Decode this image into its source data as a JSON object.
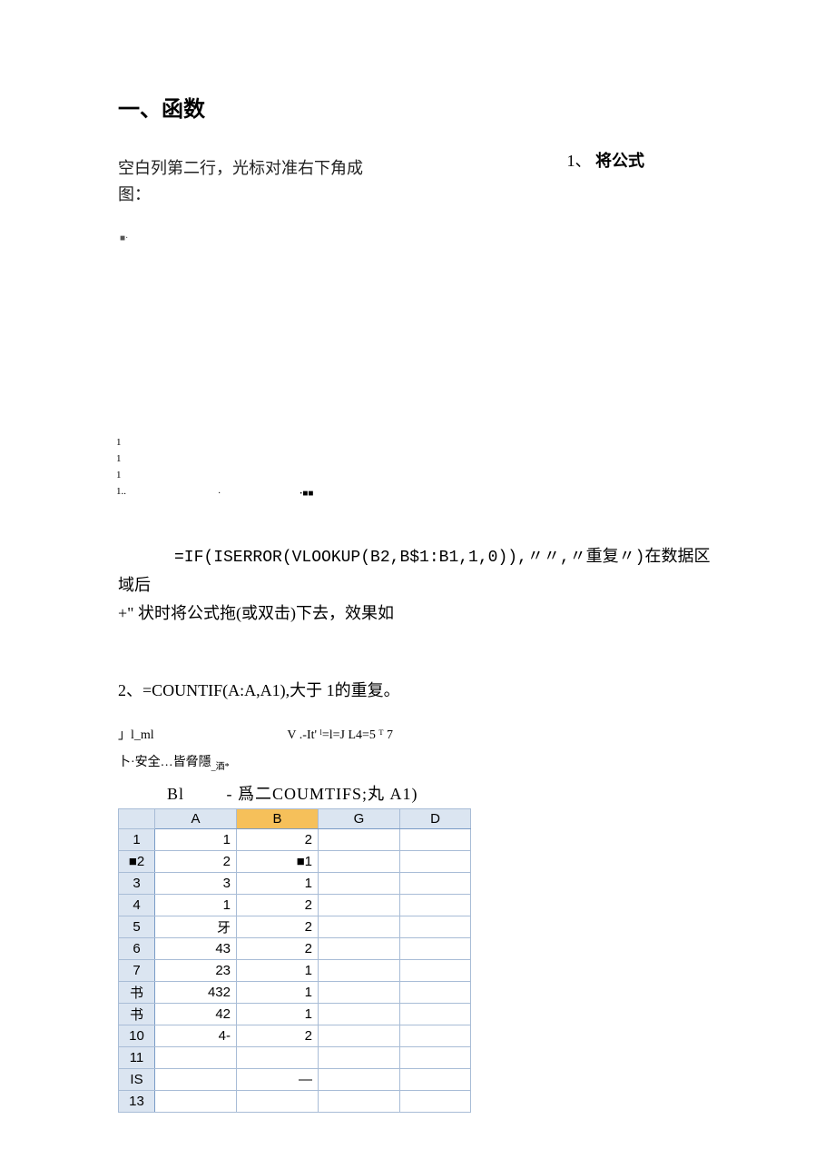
{
  "heading": "一、函数",
  "lead_line1": "空白列第二行，光标对准右下角成",
  "lead_line2": "图：",
  "side_note_num": "1",
  "side_note_sep": "、",
  "side_note_label": "将公式",
  "fig_mark_a": "■·",
  "fig_mark_b": "1",
  "fig_mark_c": "1",
  "fig_mark_d": "1",
  "fig_mark_e": "1..",
  "fig_mark_f": "·",
  "fig_mark_g": "·■■",
  "formula_code": "=IF(ISERROR(VLOOKUP(B2,B$1:B1,1,0)),〃〃,〃重复〃)",
  "formula_tail1": "在数据区域后",
  "formula_tail2": "+\" 状时将公式拖(或双击)下去，效果如",
  "sec2_text": "2、=COUNTIF(A:A,A1),大于 1的重复。",
  "scrap1_a": "」l_ml",
  "scrap1_b": "V .-It' ˡ=l=J L4=5 ᵀ 7",
  "scrap2": "卜·安全…皆脅隱",
  "scrap2_tiny": "_酒*",
  "cell_ref": "Bl",
  "cell_formula": "- 爲二COUMTIFS;丸 A1)",
  "sheet": {
    "columns": [
      "A",
      "B",
      "G",
      "D"
    ],
    "selected_col_index": 1,
    "rowheads": [
      "1",
      "■2",
      "3",
      "4",
      "5",
      "6",
      "7",
      "书",
      "书",
      "10",
      "11",
      "IS",
      "13"
    ],
    "colA": [
      "1",
      "2",
      "3",
      "1",
      "牙",
      "43",
      "23",
      "432",
      "42",
      "4-",
      "",
      "",
      ""
    ],
    "colB": [
      "2",
      "■1",
      "1",
      "2",
      "2",
      "2",
      "1",
      "1",
      "1",
      "2",
      "",
      "—",
      ""
    ],
    "row_heights": {
      "1": 24
    }
  }
}
